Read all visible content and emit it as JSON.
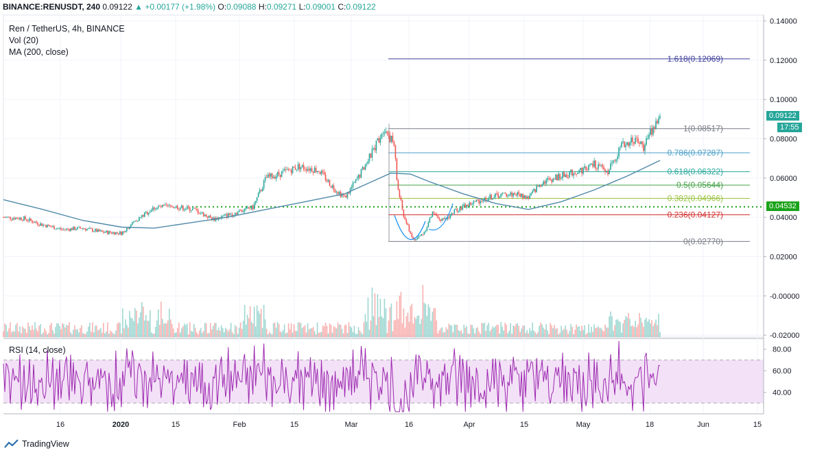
{
  "header": {
    "symbol": "BINANCE:RENUSDT, 240",
    "last": "0.09122",
    "change": "▲ +0.00177 (+1.98%)",
    "open_label": "O:",
    "open": "0.09088",
    "high_label": "H:",
    "high": "0.09271",
    "low_label": "L:",
    "low": "0.09001",
    "close_label": "C:",
    "close": "0.09122"
  },
  "legend": {
    "title": "Ren / TetherUS, 4h, BINANCE",
    "vol": "Vol (20)",
    "ma": "MA (200, close)",
    "rsi": "RSI (14, close)"
  },
  "footer": {
    "brand": "TradingView"
  },
  "colors": {
    "up": "#26a69a",
    "down": "#ef5350",
    "ma": "#4f89a8",
    "rsi": "#9c27b0",
    "rsi_band": "#f3e1f7",
    "support": "#1aa31a"
  },
  "chart_data": {
    "type": "candlestick",
    "y_axis": {
      "ticks": [
        "0.14000",
        "0.12000",
        "0.10000",
        "0.08000",
        "0.06000",
        "0.04000",
        "0.02000",
        "-0.00000",
        "-0.02000"
      ],
      "range": [
        -0.021,
        0.143
      ]
    },
    "rsi_axis": {
      "ticks": [
        "80.00",
        "60.00",
        "40.00"
      ],
      "range": [
        20,
        90
      ],
      "bands": [
        70,
        30
      ]
    },
    "x_axis": {
      "ticks": [
        "16",
        "2020",
        "15",
        "Feb",
        "15",
        "Mar",
        "16",
        "Apr",
        "15",
        "May",
        "18",
        "Jun",
        "15"
      ]
    },
    "last_price_label": "0.09122",
    "countdown_label": "17:55",
    "support_label": "0.04532",
    "support_level": 0.04532,
    "fib_levels": [
      {
        "label": "1.618(0.12069)",
        "value": 0.12069,
        "color": "#3f3f9c"
      },
      {
        "label": "1(0.08517)",
        "value": 0.08517,
        "color": "#787b86"
      },
      {
        "label": "0.786(0.07287)",
        "value": 0.07287,
        "color": "#4a9fc8"
      },
      {
        "label": "0.618(0.06322)",
        "value": 0.06322,
        "color": "#26a69a"
      },
      {
        "label": "0.5(0.05644)",
        "value": 0.05644,
        "color": "#43a047"
      },
      {
        "label": "0.382(0.04966)",
        "value": 0.04966,
        "color": "#9bc13c"
      },
      {
        "label": "0.236(0.04127)",
        "value": 0.04127,
        "color": "#d32f2f"
      },
      {
        "label": "0(0.02770)",
        "value": 0.0277,
        "color": "#787b86"
      }
    ],
    "price_path": [
      [
        0.0,
        0.04
      ],
      [
        0.03,
        0.0395
      ],
      [
        0.06,
        0.0362
      ],
      [
        0.09,
        0.0338
      ],
      [
        0.12,
        0.0345
      ],
      [
        0.15,
        0.0325
      ],
      [
        0.18,
        0.032
      ],
      [
        0.2,
        0.038
      ],
      [
        0.23,
        0.045
      ],
      [
        0.26,
        0.0455
      ],
      [
        0.29,
        0.044
      ],
      [
        0.32,
        0.039
      ],
      [
        0.35,
        0.042
      ],
      [
        0.38,
        0.045
      ],
      [
        0.4,
        0.06
      ],
      [
        0.42,
        0.062
      ],
      [
        0.45,
        0.066
      ],
      [
        0.48,
        0.064
      ],
      [
        0.5,
        0.056
      ],
      [
        0.52,
        0.05
      ],
      [
        0.54,
        0.06
      ],
      [
        0.56,
        0.072
      ],
      [
        0.58,
        0.086
      ],
      [
        0.595,
        0.077
      ],
      [
        0.6,
        0.056
      ],
      [
        0.61,
        0.04
      ],
      [
        0.625,
        0.028
      ],
      [
        0.64,
        0.032
      ],
      [
        0.655,
        0.043
      ],
      [
        0.67,
        0.038
      ],
      [
        0.69,
        0.044
      ],
      [
        0.72,
        0.048
      ],
      [
        0.75,
        0.051
      ],
      [
        0.78,
        0.052
      ],
      [
        0.8,
        0.05
      ],
      [
        0.82,
        0.058
      ],
      [
        0.85,
        0.061
      ],
      [
        0.88,
        0.064
      ],
      [
        0.9,
        0.067
      ],
      [
        0.92,
        0.063
      ],
      [
        0.94,
        0.076
      ],
      [
        0.96,
        0.08
      ],
      [
        0.975,
        0.076
      ],
      [
        0.99,
        0.086
      ],
      [
        1.0,
        0.0912
      ]
    ],
    "ma_path": [
      [
        0.0,
        0.049
      ],
      [
        0.06,
        0.044
      ],
      [
        0.12,
        0.0385
      ],
      [
        0.18,
        0.035
      ],
      [
        0.23,
        0.0345
      ],
      [
        0.28,
        0.037
      ],
      [
        0.34,
        0.04
      ],
      [
        0.4,
        0.044
      ],
      [
        0.46,
        0.048
      ],
      [
        0.52,
        0.052
      ],
      [
        0.56,
        0.058
      ],
      [
        0.59,
        0.0625
      ],
      [
        0.62,
        0.062
      ],
      [
        0.65,
        0.058
      ],
      [
        0.7,
        0.052
      ],
      [
        0.75,
        0.047
      ],
      [
        0.8,
        0.044
      ],
      [
        0.85,
        0.048
      ],
      [
        0.9,
        0.054
      ],
      [
        0.95,
        0.061
      ],
      [
        1.0,
        0.069
      ]
    ]
  }
}
